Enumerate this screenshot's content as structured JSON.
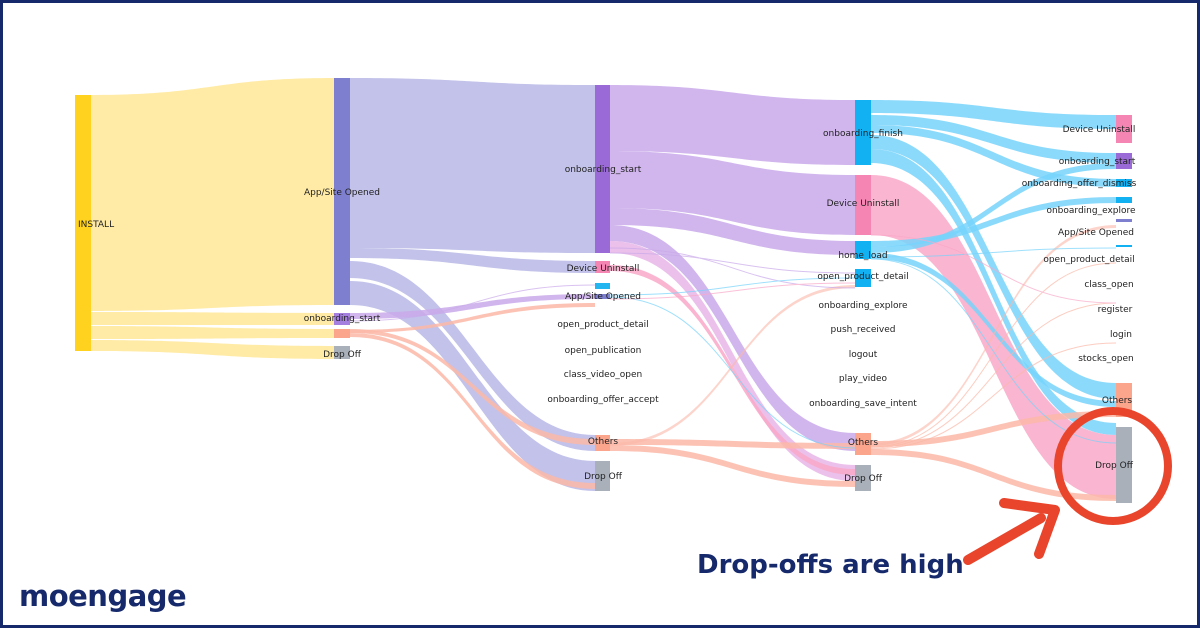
{
  "brand": {
    "name": "moengage"
  },
  "callout": {
    "text": "Drop-offs are high"
  },
  "colors": {
    "border": "#15296b",
    "yellow": "#ffe896",
    "lavender": "#b7b7e6",
    "purple": "#c9a9ea",
    "salmon": "#fbb8a8",
    "blue": "#77d3fb",
    "pink": "#f9a8c8",
    "highlight": "#e8452c"
  },
  "stages": [
    {
      "nodes": [
        {
          "label": "INSTALL"
        }
      ]
    },
    {
      "nodes": [
        {
          "label": "App/Site Opened"
        },
        {
          "label": "onboarding_start"
        },
        {
          "label": "Drop Off"
        }
      ]
    },
    {
      "nodes": [
        {
          "label": "onboarding_start"
        },
        {
          "label": "Device Uninstall"
        },
        {
          "label": "App/Site Opened"
        },
        {
          "label": "open_product_detail"
        },
        {
          "label": "open_publication"
        },
        {
          "label": "class_video_open"
        },
        {
          "label": "onboarding_offer_accept"
        },
        {
          "label": "Others"
        },
        {
          "label": "Drop Off"
        }
      ]
    },
    {
      "nodes": [
        {
          "label": "onboarding_finish"
        },
        {
          "label": "Device Uninstall"
        },
        {
          "label": "home_load"
        },
        {
          "label": "open_product_detail"
        },
        {
          "label": "onboarding_explore"
        },
        {
          "label": "push_received"
        },
        {
          "label": "logout"
        },
        {
          "label": "play_video"
        },
        {
          "label": "onboarding_save_intent"
        },
        {
          "label": "Others"
        },
        {
          "label": "Drop Off"
        }
      ]
    },
    {
      "nodes": [
        {
          "label": "Device Uninstall"
        },
        {
          "label": "onboarding_start"
        },
        {
          "label": "onboarding_offer_dismiss"
        },
        {
          "label": "onboarding_explore"
        },
        {
          "label": "App/Site Opened"
        },
        {
          "label": "open_product_detail"
        },
        {
          "label": "class_open"
        },
        {
          "label": "register"
        },
        {
          "label": "login"
        },
        {
          "label": "stocks_open"
        },
        {
          "label": "Others"
        },
        {
          "label": "Drop Off"
        }
      ]
    }
  ]
}
